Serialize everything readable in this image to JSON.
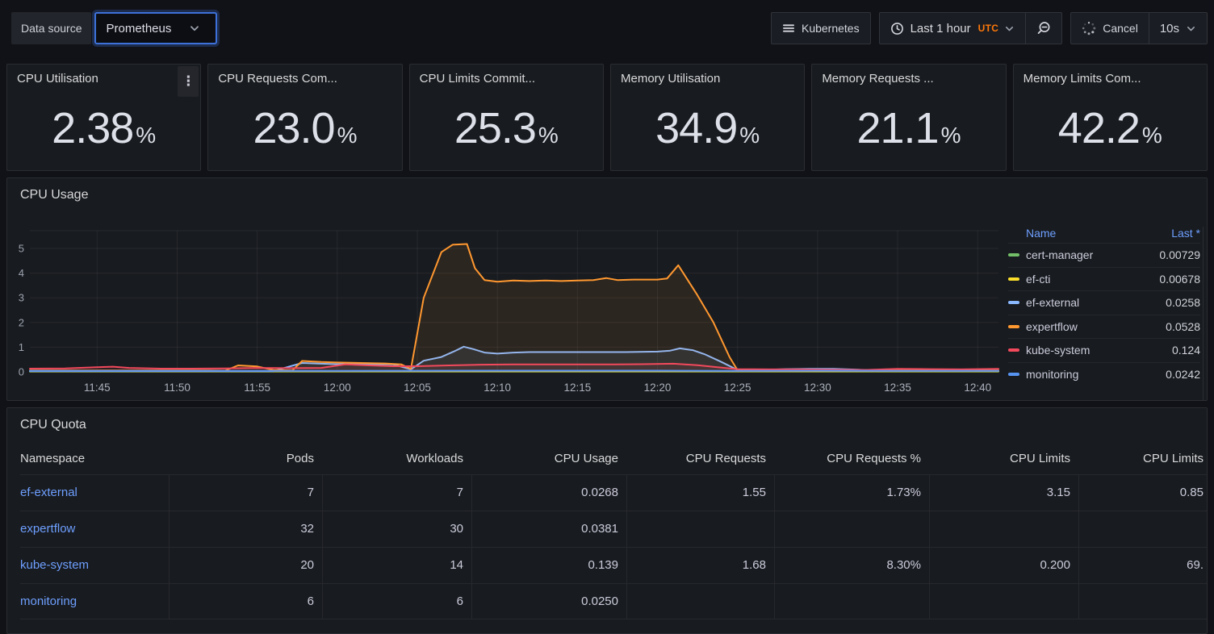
{
  "toolbar": {
    "datasource_label": "Data source",
    "datasource_value": "Prometheus",
    "dashboard_button": "Kubernetes",
    "time_range": "Last 1 hour",
    "timezone": "UTC",
    "cancel_label": "Cancel",
    "refresh_interval": "10s"
  },
  "colors": {
    "accent_blue": "#3D71D9",
    "link_blue": "#6E9FFF",
    "utc_orange": "#FF780A",
    "panel_bg": "#181B1F",
    "page_bg": "#111217"
  },
  "stats": [
    {
      "title": "CPU Utilisation",
      "value": "2.38",
      "unit": "%",
      "has_menu": true
    },
    {
      "title": "CPU Requests Com...",
      "value": "23.0",
      "unit": "%",
      "has_menu": false
    },
    {
      "title": "CPU Limits Commit...",
      "value": "25.3",
      "unit": "%",
      "has_menu": false
    },
    {
      "title": "Memory Utilisation",
      "value": "34.9",
      "unit": "%",
      "has_menu": false
    },
    {
      "title": "Memory Requests ...",
      "value": "21.1",
      "unit": "%",
      "has_menu": false
    },
    {
      "title": "Memory Limits Com...",
      "value": "42.2",
      "unit": "%",
      "has_menu": false
    }
  ],
  "cpu_usage_panel": {
    "title": "CPU Usage",
    "legend": {
      "name_header": "Name",
      "last_header": "Last *"
    }
  },
  "chart_data": {
    "type": "area",
    "title": "CPU Usage",
    "x_note": "t = minutes after 11:40 UTC",
    "x_domain": [
      0.8,
      61.3
    ],
    "x_ticks": [
      {
        "t": 5,
        "label": "11:45"
      },
      {
        "t": 10,
        "label": "11:50"
      },
      {
        "t": 15,
        "label": "11:55"
      },
      {
        "t": 20,
        "label": "12:00"
      },
      {
        "t": 25,
        "label": "12:05"
      },
      {
        "t": 30,
        "label": "12:10"
      },
      {
        "t": 35,
        "label": "12:15"
      },
      {
        "t": 40,
        "label": "12:20"
      },
      {
        "t": 45,
        "label": "12:25"
      },
      {
        "t": 50,
        "label": "12:30"
      },
      {
        "t": 55,
        "label": "12:35"
      },
      {
        "t": 60,
        "label": "12:40"
      }
    ],
    "ylim": [
      0,
      5.8
    ],
    "y_ticks": [
      0,
      1,
      2,
      3,
      4,
      5
    ],
    "legend_position": "right",
    "series": [
      {
        "name": "cert-manager",
        "color": "#73BF69",
        "last": "0.00729",
        "points": [
          [
            0.8,
            0.012
          ],
          [
            20,
            0.012
          ],
          [
            40,
            0.012
          ],
          [
            61.3,
            0.012
          ]
        ]
      },
      {
        "name": "ef-cti",
        "color": "#FADE2A",
        "last": "0.00678",
        "points": [
          [
            0.8,
            0.02
          ],
          [
            20,
            0.02
          ],
          [
            40,
            0.02
          ],
          [
            61.3,
            0.02
          ]
        ]
      },
      {
        "name": "ef-external",
        "color": "#8AB8FF",
        "last": "0.0258",
        "points": [
          [
            0.8,
            0.03
          ],
          [
            8,
            0.03
          ],
          [
            12,
            0.03
          ],
          [
            16,
            0.03
          ],
          [
            17.8,
            0.36
          ],
          [
            19,
            0.33
          ],
          [
            20,
            0.31
          ],
          [
            22,
            0.31
          ],
          [
            23.5,
            0.3
          ],
          [
            24.6,
            0.1
          ],
          [
            25.4,
            0.45
          ],
          [
            26.5,
            0.6
          ],
          [
            27.3,
            0.83
          ],
          [
            27.9,
            1.02
          ],
          [
            28.5,
            0.92
          ],
          [
            29.2,
            0.78
          ],
          [
            30,
            0.74
          ],
          [
            31,
            0.78
          ],
          [
            32,
            0.8
          ],
          [
            34,
            0.8
          ],
          [
            36,
            0.8
          ],
          [
            38,
            0.8
          ],
          [
            40,
            0.82
          ],
          [
            40.8,
            0.86
          ],
          [
            41.4,
            0.95
          ],
          [
            42.2,
            0.88
          ],
          [
            43,
            0.7
          ],
          [
            44,
            0.4
          ],
          [
            45,
            0.08
          ],
          [
            46,
            0.07
          ],
          [
            47,
            0.09
          ],
          [
            48,
            0.11
          ],
          [
            49.5,
            0.12
          ],
          [
            51,
            0.12
          ],
          [
            52.5,
            0.09
          ],
          [
            53.5,
            0.06
          ],
          [
            55,
            0.05
          ],
          [
            57,
            0.05
          ],
          [
            59,
            0.05
          ],
          [
            61.3,
            0.05
          ]
        ]
      },
      {
        "name": "expertflow",
        "color": "#FF9830",
        "last": "0.0528",
        "points": [
          [
            0.8,
            0.06
          ],
          [
            4,
            0.06
          ],
          [
            8,
            0.06
          ],
          [
            12,
            0.06
          ],
          [
            13,
            0.05
          ],
          [
            13.8,
            0.26
          ],
          [
            15,
            0.22
          ],
          [
            16,
            0.08
          ],
          [
            17.2,
            0.06
          ],
          [
            17.8,
            0.44
          ],
          [
            19,
            0.4
          ],
          [
            20,
            0.38
          ],
          [
            21.5,
            0.36
          ],
          [
            23,
            0.34
          ],
          [
            24,
            0.3
          ],
          [
            24.6,
            0.12
          ],
          [
            25.4,
            3.0
          ],
          [
            26.5,
            4.85
          ],
          [
            27.2,
            5.15
          ],
          [
            28.1,
            5.18
          ],
          [
            28.6,
            4.2
          ],
          [
            29.2,
            3.72
          ],
          [
            30,
            3.65
          ],
          [
            31,
            3.7
          ],
          [
            32,
            3.68
          ],
          [
            33,
            3.7
          ],
          [
            34,
            3.68
          ],
          [
            35,
            3.7
          ],
          [
            36,
            3.72
          ],
          [
            36.8,
            3.8
          ],
          [
            37.5,
            3.72
          ],
          [
            38.5,
            3.74
          ],
          [
            40,
            3.74
          ],
          [
            40.6,
            3.78
          ],
          [
            41.3,
            4.32
          ],
          [
            42.5,
            3.1
          ],
          [
            43.5,
            2.0
          ],
          [
            44.5,
            0.6
          ],
          [
            45,
            0.07
          ],
          [
            46,
            0.06
          ],
          [
            48,
            0.06
          ],
          [
            50,
            0.06
          ],
          [
            52,
            0.06
          ],
          [
            54,
            0.06
          ],
          [
            56,
            0.06
          ],
          [
            58,
            0.06
          ],
          [
            60,
            0.06
          ],
          [
            61.3,
            0.06
          ]
        ]
      },
      {
        "name": "kube-system",
        "color": "#F2495C",
        "last": "0.124",
        "points": [
          [
            0.8,
            0.13
          ],
          [
            3,
            0.14
          ],
          [
            5,
            0.19
          ],
          [
            6,
            0.21
          ],
          [
            7,
            0.16
          ],
          [
            9,
            0.13
          ],
          [
            11,
            0.13
          ],
          [
            13,
            0.14
          ],
          [
            15,
            0.16
          ],
          [
            17,
            0.15
          ],
          [
            19,
            0.16
          ],
          [
            20.5,
            0.3
          ],
          [
            22,
            0.26
          ],
          [
            23.5,
            0.23
          ],
          [
            25,
            0.23
          ],
          [
            27,
            0.26
          ],
          [
            29,
            0.29
          ],
          [
            31,
            0.3
          ],
          [
            33,
            0.3
          ],
          [
            35,
            0.3
          ],
          [
            37,
            0.3
          ],
          [
            39,
            0.31
          ],
          [
            41,
            0.33
          ],
          [
            42.5,
            0.27
          ],
          [
            44,
            0.17
          ],
          [
            45,
            0.11
          ],
          [
            47,
            0.1
          ],
          [
            49,
            0.1
          ],
          [
            51,
            0.09
          ],
          [
            53,
            0.08
          ],
          [
            55,
            0.12
          ],
          [
            57,
            0.11
          ],
          [
            59,
            0.1
          ],
          [
            61.3,
            0.12
          ]
        ]
      },
      {
        "name": "monitoring",
        "color": "#5794F2",
        "last": "0.0242",
        "points": [
          [
            0.8,
            0.04
          ],
          [
            10,
            0.04
          ],
          [
            20,
            0.04
          ],
          [
            30,
            0.05
          ],
          [
            40,
            0.05
          ],
          [
            45,
            0.04
          ],
          [
            50,
            0.05
          ],
          [
            55,
            0.04
          ],
          [
            61.3,
            0.04
          ]
        ]
      }
    ]
  },
  "cpu_quota": {
    "title": "CPU Quota",
    "columns": [
      "Namespace",
      "Pods",
      "Workloads",
      "CPU Usage",
      "CPU Requests",
      "CPU Requests %",
      "CPU Limits",
      "CPU Limits"
    ],
    "rows": [
      {
        "namespace": "ef-external",
        "cells": [
          "7",
          "7",
          "0.0268",
          "1.55",
          "1.73%",
          "3.15",
          "0.85"
        ]
      },
      {
        "namespace": "expertflow",
        "cells": [
          "32",
          "30",
          "0.0381",
          "",
          "",
          "",
          ""
        ]
      },
      {
        "namespace": "kube-system",
        "cells": [
          "20",
          "14",
          "0.139",
          "1.68",
          "8.30%",
          "0.200",
          "69."
        ]
      },
      {
        "namespace": "monitoring",
        "cells": [
          "6",
          "6",
          "0.0250",
          "",
          "",
          "",
          ""
        ]
      }
    ]
  }
}
